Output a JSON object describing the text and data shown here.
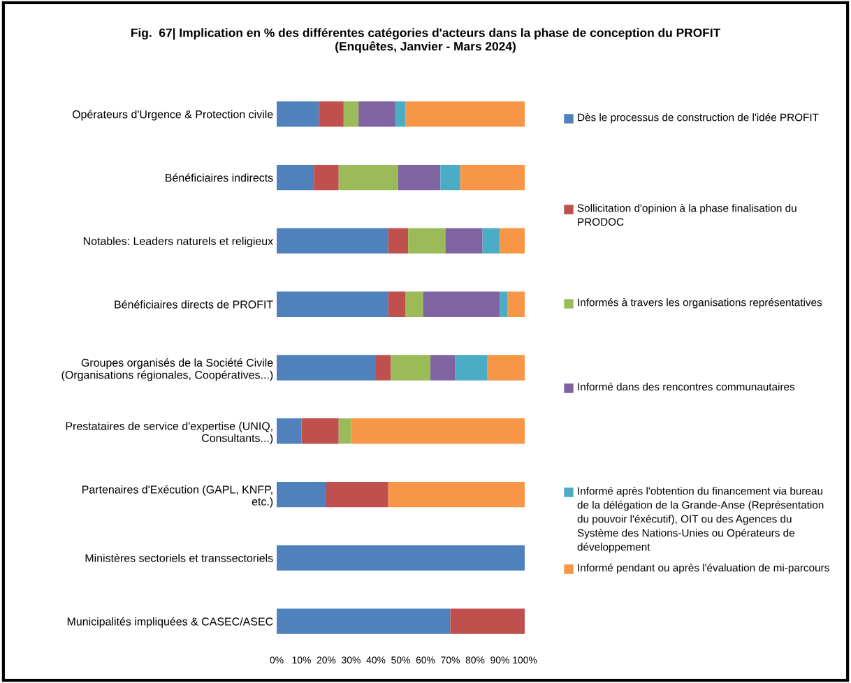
{
  "chart_data": {
    "type": "bar",
    "orientation": "horizontal",
    "stacked": true,
    "title": "Fig.  67| Implication en % des différentes catégories d'acteurs dans la phase de conception du PROFIT\n(Enquêtes, Janvier - Mars 2024)",
    "categories": [
      "Opérateurs d'Urgence & Protection civile",
      "Bénéficiaires indirects",
      "Notables: Leaders naturels et religieux",
      "Bénéficiaires directs de PROFIT",
      "Groupes organisés de la Société Civile\n(Organisations régionales, Coopératives...)",
      "Prestataires de service d'expertise (UNIQ,\nConsultants...)",
      "Partenaires d'Exécution (GAPL, KNFP,\netc.)",
      "Ministères sectoriels et transsectoriels",
      "Municipalités impliquées & CASEC/ASEC"
    ],
    "series": [
      {
        "name": "Dès le processus de construction de l'idée PROFIT",
        "color": "#4f81bd",
        "values": [
          17,
          15,
          45,
          45,
          40,
          10,
          20,
          100,
          70
        ]
      },
      {
        "name": "Sollicitation d'opinion à la phase finalisation du PRODOC",
        "color": "#c0504d",
        "values": [
          10,
          10,
          8,
          7,
          6,
          15,
          25,
          0,
          30
        ]
      },
      {
        "name": "Informés à travers les organisations représentatives",
        "color": "#9bbb59",
        "values": [
          6,
          24,
          15,
          7,
          16,
          5,
          0,
          0,
          0
        ]
      },
      {
        "name": "Informé dans des rencontres communautaires",
        "color": "#8064a2",
        "values": [
          15,
          17,
          15,
          31,
          10,
          0,
          0,
          0,
          0
        ]
      },
      {
        "name": "Informé après l'obtention du financement via bureau de la délégation de la Grande-Anse (Représentation du pouvoir l'éxécutif), OIT ou des Agences du Système des Nations-Unies ou Opérateurs de développement",
        "color": "#4bacc6",
        "values": [
          4,
          8,
          7,
          3,
          13,
          0,
          0,
          0,
          0
        ]
      },
      {
        "name": "Informé pendant ou après l'évaluation de mi-parcours",
        "color": "#f79646",
        "values": [
          48,
          26,
          10,
          7,
          15,
          70,
          55,
          0,
          0
        ]
      }
    ],
    "xlim": [
      0,
      100
    ],
    "xticks": [
      {
        "value": 0,
        "label": "0%"
      },
      {
        "value": 10,
        "label": "10%"
      },
      {
        "value": 20,
        "label": "20%"
      },
      {
        "value": 30,
        "label": "30%"
      },
      {
        "value": 40,
        "label": "40%"
      },
      {
        "value": 50,
        "label": "50%"
      },
      {
        "value": 60,
        "label": "60%"
      },
      {
        "value": 70,
        "label": "70%"
      },
      {
        "value": 80,
        "label": "80%"
      },
      {
        "value": 90,
        "label": "90%"
      },
      {
        "value": 100,
        "label": "100%"
      }
    ],
    "legend": "right",
    "grid": false
  }
}
